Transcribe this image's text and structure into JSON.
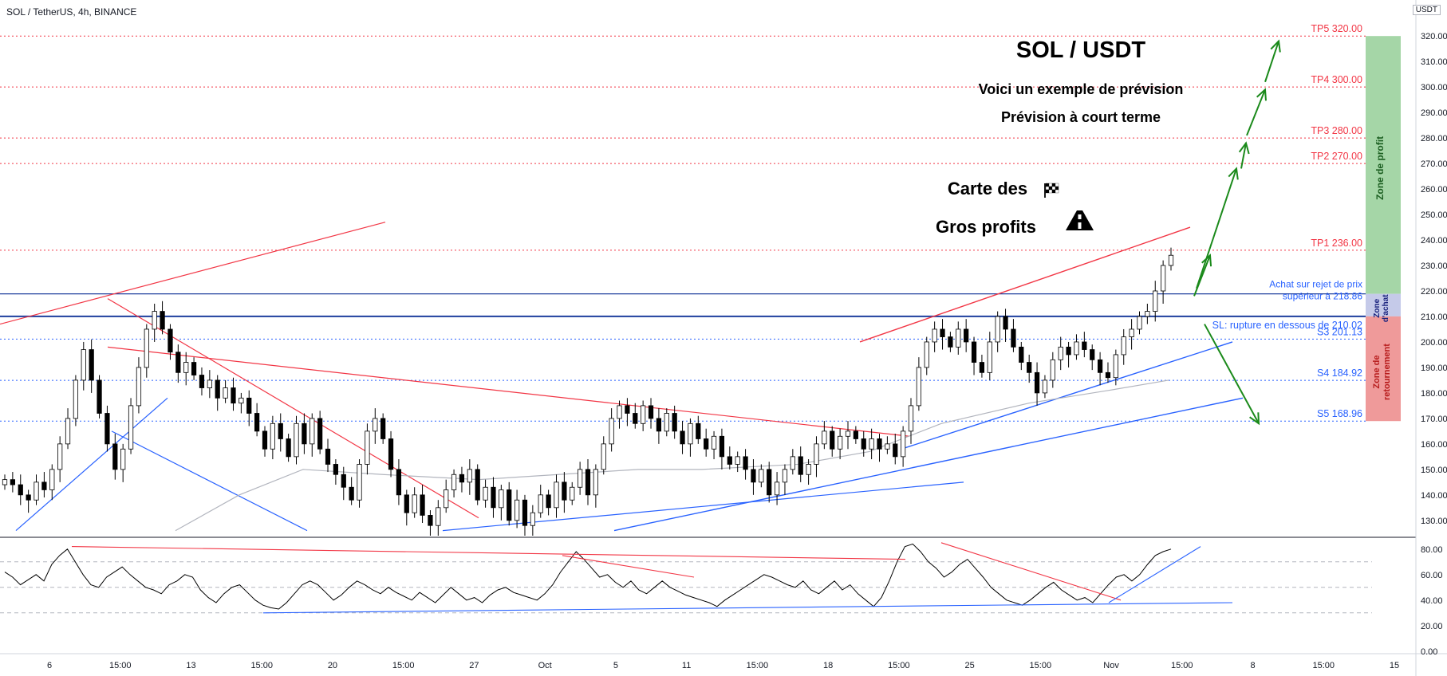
{
  "header": {
    "symbol_line": "SOL / TetherUS, 4h, BINANCE",
    "axis_unit": "USDT"
  },
  "annotations": {
    "title": "SOL / USDT",
    "subtitle1": "Voici un exemple de prévision",
    "subtitle2": "Prévision à court terme",
    "map1": "Carte des",
    "map2": "Gros profits",
    "buy_label_1": "Achat sur rejet de prix",
    "buy_label_2": "supérieur à  218.86",
    "sl_label": "SL: rupture en dessous de 210.02"
  },
  "zones": {
    "profit": "Zone de profit",
    "buy_1": "Zone",
    "buy_2": "d'achat",
    "reversal_1": "Zone de",
    "reversal_2": "retournement"
  },
  "colors": {
    "up": "#ffffff",
    "down": "#000000",
    "resistance": "#f23645",
    "support": "#2962ff",
    "arrow": "#1b8a1b",
    "profit_zone": "#a5d6a7",
    "buy_zone": "#c5cae9",
    "reversal_zone": "#ef9a9a"
  },
  "chart_data": [
    {
      "type": "candlestick",
      "title": "SOL / TetherUS, 4h, BINANCE",
      "ylabel": "USDT",
      "ylim": [
        124,
        326
      ],
      "y_ticks": [
        "320.00",
        "310.00",
        "300.00",
        "290.00",
        "280.00",
        "270.00",
        "260.00",
        "250.00",
        "240.00",
        "230.00",
        "220.00",
        "210.00",
        "200.00",
        "190.00",
        "180.00",
        "170.00",
        "160.00",
        "150.00",
        "140.00",
        "130.00"
      ],
      "x_ticks": [
        "6",
        "15:00",
        "13",
        "15:00",
        "20",
        "15:00",
        "27",
        "Oct",
        "5",
        "11",
        "15:00",
        "18",
        "15:00",
        "25",
        "15:00",
        "Nov",
        "15:00",
        "8",
        "15:00",
        "15"
      ],
      "levels": [
        {
          "name": "TP5",
          "label": "TP5 320.00",
          "value": 320.0
        },
        {
          "name": "TP4",
          "label": "TP4 300.00",
          "value": 300.0
        },
        {
          "name": "TP3",
          "label": "TP3 280.00",
          "value": 280.0
        },
        {
          "name": "TP2",
          "label": "TP2 270.00",
          "value": 270.0
        },
        {
          "name": "TP1",
          "label": "TP1 236.00",
          "value": 236.0
        },
        {
          "name": "Buy",
          "label": "",
          "value": 218.86
        },
        {
          "name": "SL",
          "label": "",
          "value": 210.02
        },
        {
          "name": "S3",
          "label": "S3 201.13",
          "value": 201.13
        },
        {
          "name": "S4",
          "label": "S4 184.92",
          "value": 184.92
        },
        {
          "name": "S5",
          "label": "S5 168.96",
          "value": 168.96
        }
      ],
      "close_path": [
        146,
        144,
        140,
        138,
        145,
        142,
        150,
        160,
        170,
        185,
        197,
        185,
        172,
        160,
        150,
        158,
        175,
        190,
        205,
        212,
        205,
        196,
        188,
        192,
        187,
        182,
        185,
        178,
        182,
        176,
        178,
        172,
        165,
        158,
        168,
        162,
        155,
        168,
        160,
        170,
        158,
        152,
        148,
        143,
        138,
        152,
        165,
        170,
        162,
        150,
        140,
        133,
        140,
        132,
        128,
        135,
        142,
        148,
        145,
        150,
        138,
        143,
        135,
        142,
        130,
        138,
        128,
        133,
        140,
        135,
        145,
        138,
        143,
        150,
        140,
        150,
        160,
        170,
        175,
        172,
        168,
        175,
        170,
        165,
        172,
        165,
        160,
        168,
        162,
        158,
        163,
        155,
        152,
        155,
        150,
        145,
        150,
        140,
        145,
        150,
        155,
        148,
        152,
        160,
        165,
        158,
        163,
        165,
        162,
        158,
        162,
        158,
        160,
        155,
        165,
        175,
        190,
        200,
        205,
        202,
        198,
        205,
        200,
        192,
        188,
        200,
        210,
        205,
        198,
        192,
        188,
        180,
        185,
        193,
        198,
        195,
        200,
        197,
        193,
        188,
        186,
        195,
        202,
        205,
        210,
        212,
        220,
        230,
        234
      ]
    },
    {
      "type": "line",
      "title": "",
      "ylim": [
        -2,
        88
      ],
      "y_ticks": [
        "80.00",
        "60.00",
        "40.00",
        "20.00",
        "0.00"
      ],
      "values": [
        62,
        58,
        52,
        56,
        60,
        55,
        68,
        75,
        80,
        70,
        60,
        52,
        50,
        58,
        62,
        66,
        60,
        55,
        50,
        48,
        45,
        52,
        55,
        60,
        58,
        48,
        42,
        38,
        45,
        50,
        52,
        46,
        40,
        36,
        34,
        33,
        38,
        45,
        52,
        55,
        52,
        46,
        40,
        44,
        50,
        55,
        52,
        48,
        45,
        50,
        46,
        43,
        40,
        46,
        42,
        38,
        44,
        50,
        45,
        40,
        42,
        38,
        44,
        48,
        50,
        46,
        44,
        42,
        40,
        45,
        52,
        62,
        70,
        78,
        72,
        65,
        58,
        60,
        54,
        50,
        55,
        48,
        45,
        50,
        55,
        50,
        47,
        44,
        42,
        40,
        38,
        35,
        40,
        44,
        48,
        52,
        56,
        60,
        58,
        55,
        52,
        50,
        55,
        48,
        45,
        50,
        55,
        48,
        52,
        45,
        40,
        35,
        42,
        55,
        70,
        82,
        84,
        78,
        70,
        65,
        58,
        62,
        68,
        72,
        65,
        58,
        50,
        45,
        40,
        38,
        36,
        40,
        45,
        50,
        54,
        48,
        44,
        40,
        42,
        38,
        45,
        52,
        58,
        60,
        55,
        60,
        68,
        75,
        78,
        80
      ]
    }
  ]
}
